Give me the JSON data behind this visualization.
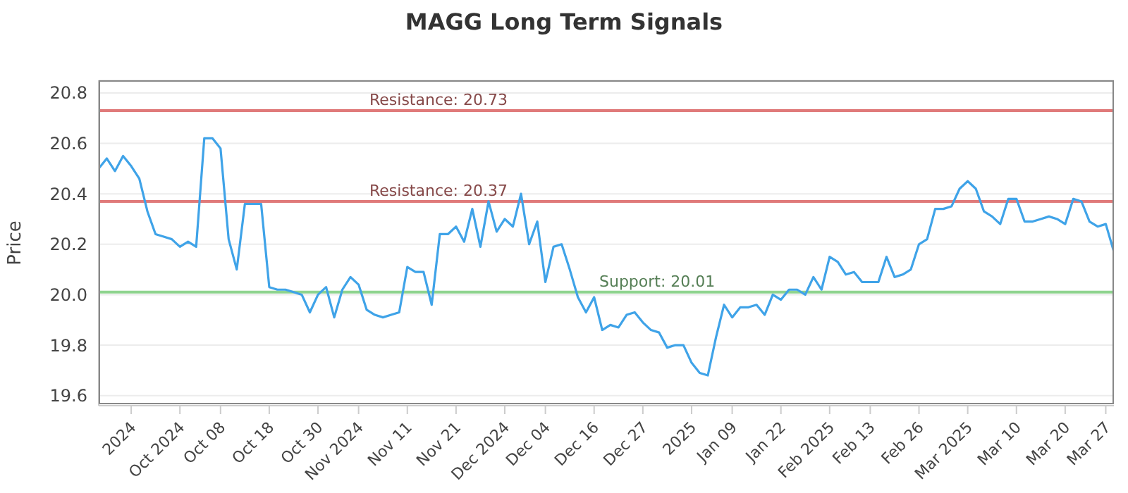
{
  "chart_data": {
    "type": "line",
    "title": "MAGG Long Term Signals",
    "ylabel": "Price",
    "categories": [
      null,
      null,
      null,
      null,
      "2024",
      null,
      null,
      null,
      null,
      null,
      "Oct 2024",
      null,
      null,
      null,
      null,
      "Oct 08",
      null,
      null,
      null,
      null,
      null,
      "Oct 18",
      null,
      null,
      null,
      null,
      null,
      "Oct 30",
      null,
      null,
      null,
      null,
      "Nov 2024",
      null,
      null,
      null,
      null,
      null,
      "Nov 11",
      null,
      null,
      null,
      null,
      null,
      "Nov 21",
      null,
      null,
      null,
      null,
      null,
      "Dec 2024",
      null,
      null,
      null,
      null,
      "Dec 04",
      null,
      null,
      null,
      null,
      null,
      "Dec 16",
      null,
      null,
      null,
      null,
      null,
      "Dec 27",
      null,
      null,
      null,
      null,
      null,
      "2025",
      null,
      null,
      null,
      null,
      "Jan 09",
      null,
      null,
      null,
      null,
      null,
      "Jan 22",
      null,
      null,
      null,
      null,
      null,
      "Feb 2025",
      null,
      null,
      null,
      null,
      "Feb 13",
      null,
      null,
      null,
      null,
      null,
      "Feb 26",
      null,
      null,
      null,
      null,
      null,
      "Mar 2025",
      null,
      null,
      null,
      null,
      null,
      "Mar 10",
      null,
      null,
      null,
      null,
      null,
      "Mar 20",
      null,
      null,
      null,
      null,
      "Mar 27",
      null
    ],
    "series": [
      {
        "color": "#3fa3e8",
        "values": [
          20.5,
          20.54,
          20.49,
          20.55,
          20.51,
          20.46,
          20.33,
          20.24,
          20.23,
          20.22,
          20.19,
          20.21,
          20.19,
          20.62,
          20.62,
          20.58,
          20.22,
          20.1,
          20.36,
          20.36,
          20.36,
          20.03,
          20.02,
          20.02,
          20.01,
          20.0,
          19.93,
          20.0,
          20.03,
          19.91,
          20.02,
          20.07,
          20.04,
          19.94,
          19.92,
          19.91,
          19.92,
          19.93,
          20.11,
          20.09,
          20.09,
          19.96,
          20.24,
          20.24,
          20.27,
          20.21,
          20.34,
          20.19,
          20.37,
          20.25,
          20.3,
          20.27,
          20.4,
          20.2,
          20.29,
          20.05,
          20.19,
          20.2,
          20.1,
          19.99,
          19.93,
          19.99,
          19.86,
          19.88,
          19.87,
          19.92,
          19.93,
          19.89,
          19.86,
          19.85,
          19.79,
          19.8,
          19.8,
          19.73,
          19.69,
          19.68,
          19.83,
          19.96,
          19.91,
          19.95,
          19.95,
          19.96,
          19.92,
          20.0,
          19.98,
          20.02,
          20.02,
          20.0,
          20.07,
          20.02,
          20.15,
          20.13,
          20.08,
          20.09,
          20.05,
          20.05,
          20.05,
          20.15,
          20.07,
          20.08,
          20.1,
          20.2,
          20.22,
          20.34,
          20.34,
          20.35,
          20.42,
          20.45,
          20.42,
          20.33,
          20.31,
          20.28,
          20.38,
          20.38,
          20.29,
          20.29,
          20.3,
          20.31,
          20.3,
          20.28,
          20.38,
          20.37,
          20.29,
          20.27,
          20.28,
          20.17
        ]
      }
    ],
    "ylim": [
      19.56,
      20.85
    ],
    "yticks": [
      {
        "value": 19.6,
        "label": "19.6"
      },
      {
        "value": 19.8,
        "label": "19.8"
      },
      {
        "value": 20.0,
        "label": "20.0"
      },
      {
        "value": 20.2,
        "label": "20.2"
      },
      {
        "value": 20.4,
        "label": "20.4"
      },
      {
        "value": 20.6,
        "label": "20.6"
      },
      {
        "value": 20.8,
        "label": "20.8"
      }
    ],
    "grid": "y",
    "ref_lines": [
      {
        "axis": "y",
        "value": 20.73,
        "label": "Resistance: 20.73",
        "color": "#e07a7a"
      },
      {
        "axis": "y",
        "value": 20.37,
        "label": "Resistance: 20.37",
        "color": "#e07a7a"
      },
      {
        "axis": "y",
        "value": 20.01,
        "label": "Support: 20.01",
        "color": "#8fd48f"
      }
    ]
  }
}
